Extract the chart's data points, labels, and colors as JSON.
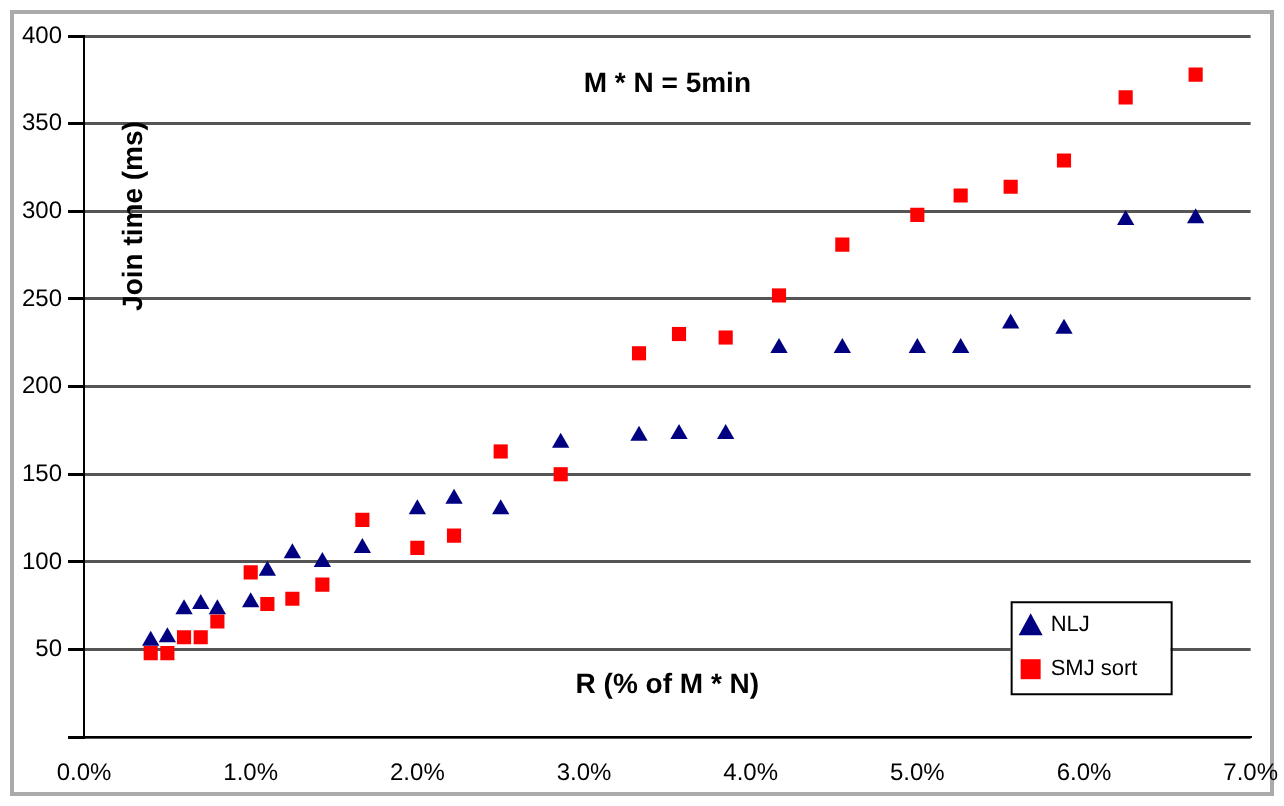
{
  "chart_data": {
    "type": "scatter",
    "title": "M * N = 5min",
    "xlabel": "R (% of M * N)",
    "ylabel": "Join time (ms)",
    "series": [
      {
        "name": "NLJ",
        "color": "#000080",
        "marker": "triangle",
        "x": [
          0.4,
          0.5,
          0.6,
          0.7,
          0.8,
          1.0,
          1.1,
          1.25,
          1.43,
          1.67,
          2.0,
          2.22,
          2.5,
          2.86,
          3.33,
          3.57,
          3.85,
          4.17,
          4.55,
          5.0,
          5.26,
          5.56,
          5.88,
          6.25,
          6.67
        ],
        "values": [
          55,
          57,
          73,
          76,
          73,
          77,
          95,
          105,
          100,
          108,
          130,
          136,
          130,
          168,
          172,
          173,
          173,
          222,
          222,
          222,
          222,
          236,
          233,
          295,
          296
        ]
      },
      {
        "name": "SMJ sort",
        "color": "#ff0000",
        "marker": "square",
        "x": [
          0.4,
          0.5,
          0.6,
          0.7,
          0.8,
          1.0,
          1.1,
          1.25,
          1.43,
          1.67,
          2.0,
          2.22,
          2.5,
          2.86,
          3.33,
          3.57,
          3.85,
          4.17,
          4.55,
          5.0,
          5.26,
          5.56,
          5.88,
          6.25,
          6.67
        ],
        "values": [
          48,
          48,
          57,
          57,
          66,
          94,
          76,
          79,
          87,
          124,
          108,
          115,
          163,
          150,
          219,
          230,
          228,
          252,
          281,
          298,
          309,
          314,
          329,
          365,
          378
        ]
      }
    ],
    "xlim": [
      0,
      7
    ],
    "xticks": [
      {
        "value": 0,
        "label": "0.0%"
      },
      {
        "value": 1,
        "label": "1.0%"
      },
      {
        "value": 2,
        "label": "2.0%"
      },
      {
        "value": 3,
        "label": "3.0%"
      },
      {
        "value": 4,
        "label": "4.0%"
      },
      {
        "value": 5,
        "label": "5.0%"
      },
      {
        "value": 6,
        "label": "6.0%"
      },
      {
        "value": 7,
        "label": "7.0%"
      }
    ],
    "ylim": [
      0,
      400
    ],
    "yticks": [
      {
        "value": 0,
        "label": null
      },
      50,
      100,
      150,
      200,
      250,
      300,
      350,
      400
    ],
    "grid": "y",
    "legend": "bottom right"
  }
}
